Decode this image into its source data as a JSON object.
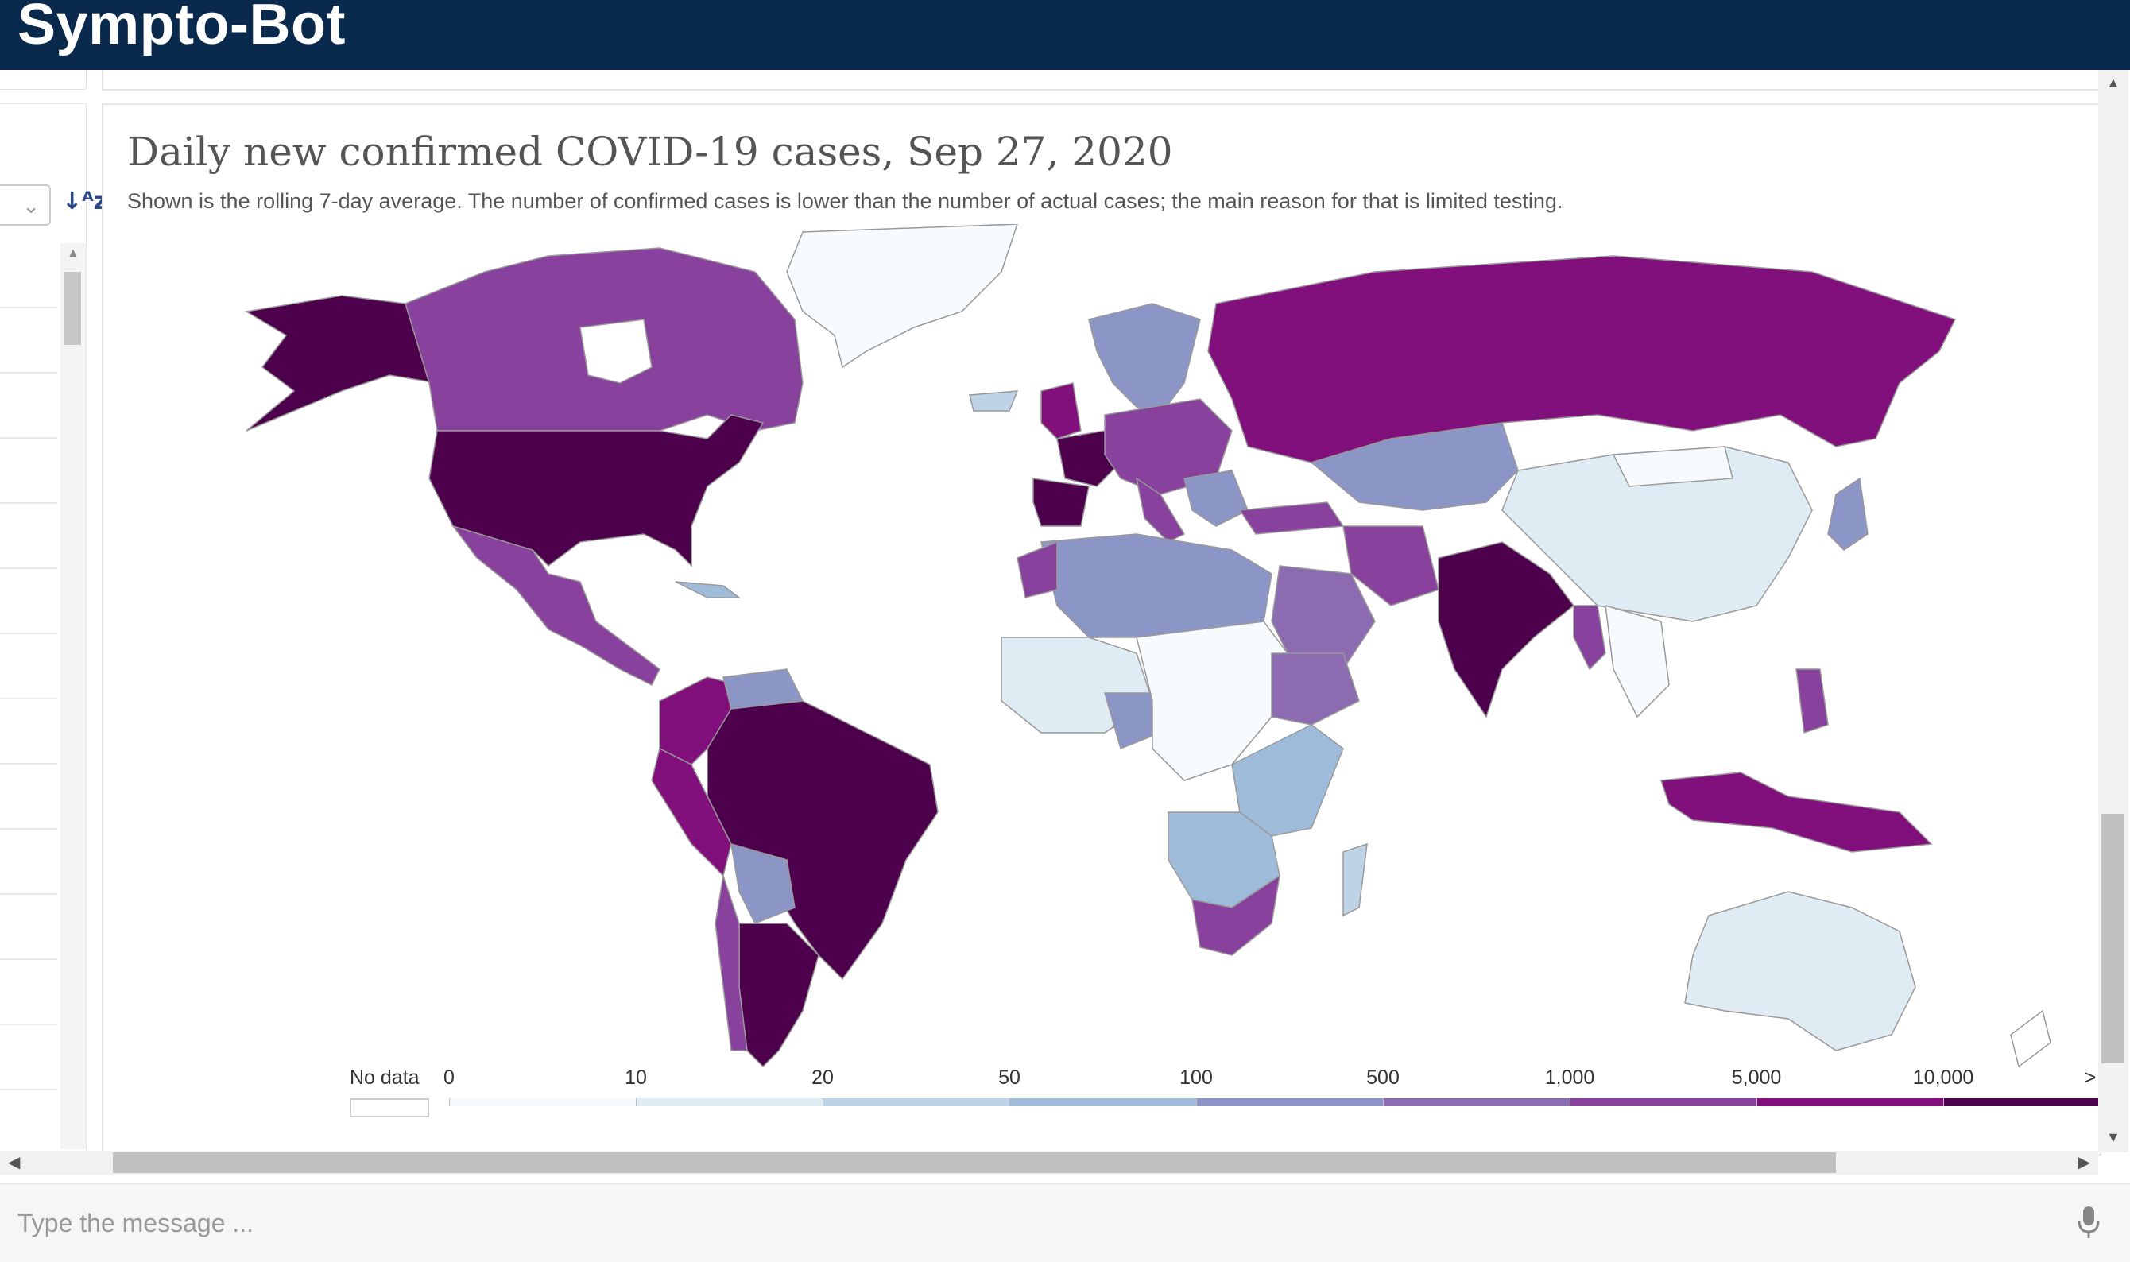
{
  "app": {
    "title": "Sympto-Bot"
  },
  "chart": {
    "title": "Daily new confirmed COVID-19 cases, Sep 27, 2020",
    "subtitle": "Shown is the rolling 7-day average. The number of confirmed cases is lower than the number of actual cases; the main reason for that is limited testing."
  },
  "chart_data": {
    "type": "choropleth",
    "title": "Daily new confirmed COVID-19 cases, Sep 27, 2020",
    "legend": {
      "no_data_label": "No data",
      "ticks": [
        "0",
        "10",
        "20",
        "50",
        "100",
        "500",
        "1,000",
        "5,000",
        "10,000",
        ">"
      ],
      "bins": [
        {
          "range": "0-10",
          "color": "#f7fbfd"
        },
        {
          "range": "10-20",
          "color": "#e0ecf4"
        },
        {
          "range": "20-50",
          "color": "#bfd3e6"
        },
        {
          "range": "50-100",
          "color": "#9ebcda"
        },
        {
          "range": "100-500",
          "color": "#8c96c6"
        },
        {
          "range": "500-1,000",
          "color": "#8c6bb1"
        },
        {
          "range": "1,000-5,000",
          "color": "#88419d"
        },
        {
          "range": "5,000-10,000",
          "color": "#810f7c"
        },
        {
          "range": ">10,000",
          "color": "#4d004b"
        }
      ]
    }
  },
  "message_bar": {
    "placeholder": "Type the message ..."
  },
  "icons": {
    "sort": "sort-alpha-icon",
    "mic": "microphone-icon",
    "select": "chevron-down-icon"
  }
}
